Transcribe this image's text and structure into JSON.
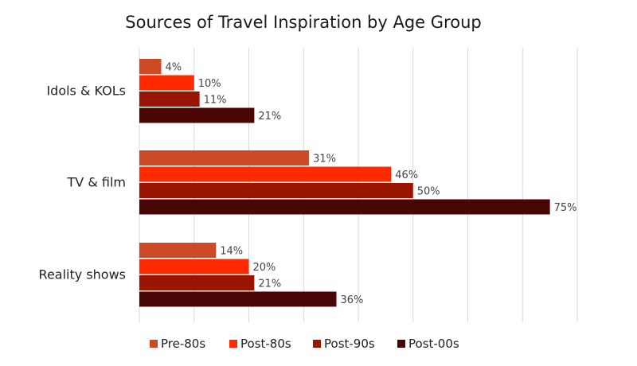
{
  "chart_data": {
    "type": "bar",
    "orientation": "horizontal",
    "title": "Sources of Travel Inspiration by Age Group",
    "xlabel": "",
    "ylabel": "",
    "categories": [
      "Idols & KOLs",
      "TV & film",
      "Reality shows"
    ],
    "series": [
      {
        "name": "Pre-80s",
        "values": [
          4,
          31,
          14
        ],
        "color": "#cc4a26"
      },
      {
        "name": "Post-80s",
        "values": [
          10,
          46,
          20
        ],
        "color": "#ff2a00"
      },
      {
        "name": "Post-90s",
        "values": [
          11,
          50,
          21
        ],
        "color": "#991500"
      },
      {
        "name": "Post-00s",
        "values": [
          21,
          75,
          36
        ],
        "color": "#4a0505"
      }
    ],
    "value_suffix": "%",
    "xlim": [
      0,
      80
    ],
    "grid": true,
    "legend_position": "bottom"
  }
}
